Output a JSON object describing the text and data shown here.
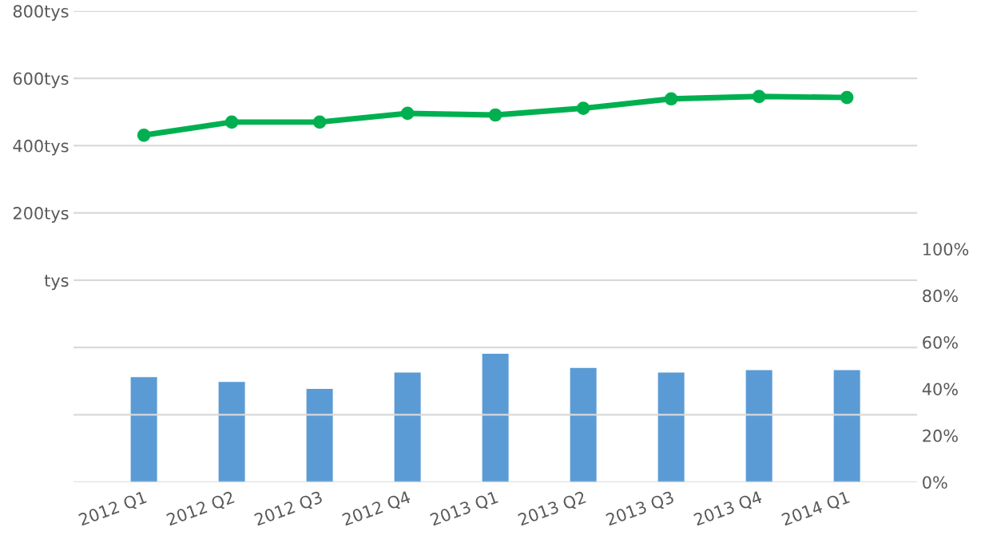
{
  "chart_data": {
    "type": "bar",
    "categories": [
      "2012 Q1",
      "2012 Q2",
      "2012 Q3",
      "2012 Q4",
      "2013 Q1",
      "2013 Q2",
      "2013 Q3",
      "2013 Q4",
      "2014 Q1"
    ],
    "series": [
      {
        "type": "line",
        "color": "#00b050",
        "marker": "circle",
        "values": [
          431,
          470,
          470,
          496,
          491,
          511,
          539,
          546,
          543
        ]
      },
      {
        "axis": "y2",
        "color": "#5b9bd5",
        "values": [
          45,
          43,
          40,
          47,
          55,
          49,
          47,
          48,
          48
        ]
      }
    ],
    "ylim": [
      -600,
      800
    ],
    "yticks": [
      {
        "value": -600,
        "label": null
      },
      {
        "value": -400,
        "label": null
      },
      {
        "value": -200,
        "label": null
      },
      {
        "value": 0,
        "label": "tys"
      },
      {
        "value": 200,
        "label": "200tys"
      },
      {
        "value": 400,
        "label": "400tys"
      },
      {
        "value": 600,
        "label": "600tys"
      },
      {
        "value": 800,
        "label": "800tys"
      }
    ],
    "y2lim": [
      0,
      202
    ],
    "y2ticks": [
      {
        "value": 0,
        "label": "0%"
      },
      {
        "value": 20,
        "label": "20%"
      },
      {
        "value": 40,
        "label": "40%"
      },
      {
        "value": 60,
        "label": "60%"
      },
      {
        "value": 80,
        "label": "80%"
      },
      {
        "value": 100,
        "label": "100%"
      }
    ],
    "grid": "y"
  }
}
